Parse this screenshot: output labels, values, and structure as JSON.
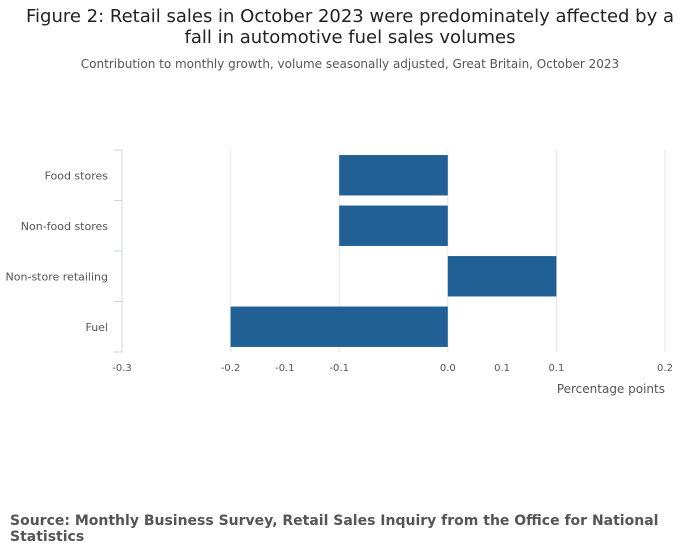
{
  "title": "Figure 2: Retail sales in October 2023 were predominately affected by a fall in automotive fuel sales volumes",
  "subtitle": "Contribution to monthly growth, volume seasonally adjusted, Great Britain, October 2023",
  "source": "Source: Monthly Business Survey, Retail Sales Inquiry from the Office for National Statistics",
  "colors": {
    "bar": "#206095",
    "grid": "#e6e6e6",
    "axis": "#cdd4e0",
    "text": "#555555"
  },
  "chart_data": {
    "type": "bar",
    "orientation": "horizontal",
    "categories": [
      "Food stores",
      "Non-food stores",
      "Non-store retailing",
      "Fuel"
    ],
    "values": [
      -0.1,
      -0.1,
      0.1,
      -0.2
    ],
    "xlabel": "Percentage points",
    "ylabel": "",
    "xlim": [
      -0.3,
      0.2
    ],
    "xticks": [
      -0.3,
      -0.2,
      -0.1,
      0.0,
      0.1,
      0.2
    ],
    "xtick_labels": [
      "-0.3",
      "-0.2",
      "-0.1",
      "-0.1",
      "0.0",
      "0.1",
      "0.1",
      "0.2"
    ],
    "xtick_label_values": [
      -0.3,
      -0.2,
      -0.15,
      -0.1,
      0.0,
      0.05,
      0.1,
      0.2
    ],
    "grid": true,
    "legend": "none"
  }
}
